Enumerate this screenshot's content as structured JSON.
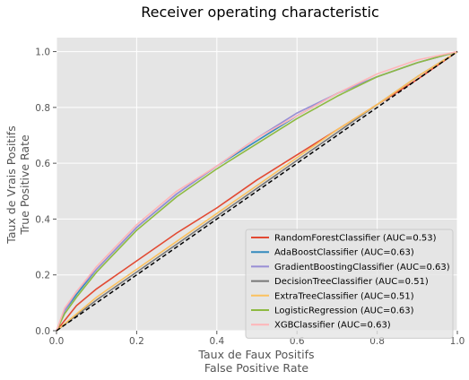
{
  "chart_data": {
    "type": "line",
    "title": "Receiver operating characteristic",
    "xlabel_lines": [
      "Taux de Faux Positifs",
      "False Positive Rate"
    ],
    "ylabel_lines": [
      "Taux de Vrais Positifs",
      "True Positive Rate"
    ],
    "xlim": [
      0,
      1
    ],
    "ylim": [
      0,
      1.05
    ],
    "xticks": [
      0.0,
      0.2,
      0.4,
      0.6,
      0.8,
      1.0
    ],
    "yticks": [
      0.0,
      0.2,
      0.4,
      0.6,
      0.8,
      1.0
    ],
    "grid": true,
    "legend_position": "lower-right",
    "diagonal": {
      "x": [
        0,
        1
      ],
      "y": [
        0,
        1
      ],
      "color": "#000000",
      "style": "dashed"
    },
    "series": [
      {
        "name": "RandomForestClassifier (AUC=0.53)",
        "color": "#E24A33",
        "x": [
          0,
          0.05,
          0.1,
          0.2,
          0.3,
          0.4,
          0.5,
          0.6,
          0.7,
          0.8,
          0.9,
          1.0
        ],
        "y": [
          0,
          0.09,
          0.15,
          0.25,
          0.35,
          0.44,
          0.54,
          0.63,
          0.72,
          0.81,
          0.9,
          1.0
        ]
      },
      {
        "name": "AdaBoostClassifier (AUC=0.63)",
        "color": "#348ABD",
        "x": [
          0,
          0.02,
          0.05,
          0.1,
          0.2,
          0.3,
          0.4,
          0.5,
          0.6,
          0.7,
          0.8,
          0.9,
          1.0
        ],
        "y": [
          0,
          0.07,
          0.13,
          0.22,
          0.37,
          0.49,
          0.59,
          0.68,
          0.77,
          0.85,
          0.91,
          0.96,
          1.0
        ]
      },
      {
        "name": "GradientBoostingClassifier (AUC=0.63)",
        "color": "#988ED5",
        "x": [
          0,
          0.02,
          0.05,
          0.1,
          0.2,
          0.3,
          0.4,
          0.5,
          0.6,
          0.7,
          0.8,
          0.9,
          1.0
        ],
        "y": [
          0,
          0.07,
          0.14,
          0.22,
          0.37,
          0.49,
          0.59,
          0.69,
          0.78,
          0.85,
          0.91,
          0.96,
          1.0
        ]
      },
      {
        "name": "DecisionTreeClassifier (AUC=0.51)",
        "color": "#777777",
        "x": [
          0,
          0.1,
          0.2,
          0.3,
          0.4,
          0.5,
          0.6,
          0.7,
          0.8,
          0.9,
          1.0
        ],
        "y": [
          0,
          0.11,
          0.21,
          0.31,
          0.41,
          0.51,
          0.61,
          0.71,
          0.81,
          0.91,
          1.0
        ]
      },
      {
        "name": "ExtraTreeClassifier (AUC=0.51)",
        "color": "#FBC15E",
        "x": [
          0,
          0.1,
          0.2,
          0.3,
          0.4,
          0.5,
          0.6,
          0.7,
          0.8,
          0.9,
          1.0
        ],
        "y": [
          0,
          0.12,
          0.22,
          0.32,
          0.42,
          0.52,
          0.62,
          0.72,
          0.81,
          0.91,
          1.0
        ]
      },
      {
        "name": "LogisticRegression (AUC=0.63)",
        "color": "#8EBA42",
        "x": [
          0,
          0.02,
          0.05,
          0.1,
          0.2,
          0.3,
          0.4,
          0.5,
          0.6,
          0.7,
          0.8,
          0.9,
          1.0
        ],
        "y": [
          0,
          0.06,
          0.12,
          0.21,
          0.36,
          0.48,
          0.58,
          0.67,
          0.76,
          0.84,
          0.91,
          0.96,
          1.0
        ]
      },
      {
        "name": "XGBClassifier (AUC=0.63)",
        "color": "#FFB5B8",
        "x": [
          0,
          0.02,
          0.05,
          0.1,
          0.2,
          0.3,
          0.4,
          0.5,
          0.6,
          0.7,
          0.8,
          0.9,
          1.0
        ],
        "y": [
          0,
          0.08,
          0.14,
          0.23,
          0.38,
          0.5,
          0.59,
          0.69,
          0.77,
          0.85,
          0.92,
          0.97,
          1.0
        ]
      }
    ]
  }
}
